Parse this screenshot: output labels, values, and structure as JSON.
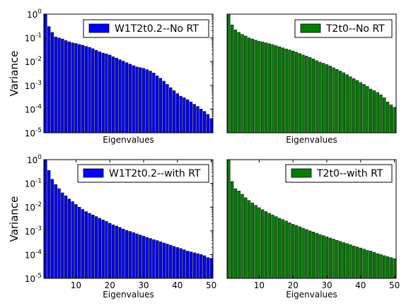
{
  "chart_data": [
    {
      "type": "bar",
      "legend": "W1T2t0.2--No RT",
      "color": "#0000ff",
      "xlabel": "Eigenvalues",
      "ylabel": "Variance",
      "yscale": "log",
      "ylim": [
        1e-05,
        1
      ],
      "xlim": [
        0.5,
        50.5
      ],
      "show_x_ticks": false,
      "show_y_ticks": true,
      "legend_position": "top-right",
      "x": [
        1,
        2,
        3,
        4,
        5,
        6,
        7,
        8,
        9,
        10,
        11,
        12,
        13,
        14,
        15,
        16,
        17,
        18,
        19,
        20,
        21,
        22,
        23,
        24,
        25,
        26,
        27,
        28,
        29,
        30,
        31,
        32,
        33,
        34,
        35,
        36,
        37,
        38,
        39,
        40,
        41,
        42,
        43,
        44,
        45,
        46,
        47,
        48,
        49,
        50
      ],
      "values": [
        1.0,
        0.3,
        0.17,
        0.11,
        0.1,
        0.09,
        0.077,
        0.068,
        0.062,
        0.058,
        0.053,
        0.049,
        0.044,
        0.04,
        0.035,
        0.03,
        0.026,
        0.023,
        0.021,
        0.019,
        0.016,
        0.014,
        0.012,
        0.0105,
        0.009,
        0.0078,
        0.0068,
        0.006,
        0.0056,
        0.0052,
        0.0046,
        0.004,
        0.0033,
        0.0025,
        0.002,
        0.0015,
        0.0011,
        0.0008,
        0.0006,
        0.00045,
        0.00035,
        0.0003,
        0.00025,
        0.0002,
        0.00016,
        0.00013,
        0.0001,
        8e-05,
        6e-05,
        4e-05
      ]
    },
    {
      "type": "bar",
      "legend": "T2t0--No RT",
      "color": "#007f00",
      "xlabel": "Eigenvalues",
      "ylabel": "",
      "yscale": "log",
      "ylim": [
        1e-05,
        1
      ],
      "xlim": [
        0.5,
        50.5
      ],
      "show_x_ticks": false,
      "show_y_ticks": false,
      "legend_position": "top-right",
      "x": [
        1,
        2,
        3,
        4,
        5,
        6,
        7,
        8,
        9,
        10,
        11,
        12,
        13,
        14,
        15,
        16,
        17,
        18,
        19,
        20,
        21,
        22,
        23,
        24,
        25,
        26,
        27,
        28,
        29,
        30,
        31,
        32,
        33,
        34,
        35,
        36,
        37,
        38,
        39,
        40,
        41,
        42,
        43,
        44,
        45,
        46,
        47,
        48,
        49,
        50
      ],
      "values": [
        1.0,
        0.35,
        0.22,
        0.17,
        0.14,
        0.12,
        0.1,
        0.09,
        0.08,
        0.072,
        0.067,
        0.062,
        0.057,
        0.052,
        0.047,
        0.042,
        0.038,
        0.034,
        0.031,
        0.028,
        0.025,
        0.022,
        0.019,
        0.017,
        0.015,
        0.013,
        0.011,
        0.0095,
        0.0085,
        0.0075,
        0.0065,
        0.0055,
        0.0047,
        0.004,
        0.0034,
        0.0028,
        0.0023,
        0.0019,
        0.0016,
        0.0013,
        0.0011,
        0.0009,
        0.0007,
        0.0006,
        0.0005,
        0.0004,
        0.0003,
        0.0002,
        0.00015,
        0.00012
      ]
    },
    {
      "type": "bar",
      "legend": "W1T2t0.2--with RT",
      "color": "#0000ff",
      "xlabel": "Eigenvalues",
      "ylabel": "Variance",
      "yscale": "log",
      "ylim": [
        1e-05,
        1
      ],
      "xlim": [
        0.5,
        50.5
      ],
      "xticks": [
        10,
        20,
        30,
        40,
        50
      ],
      "show_x_ticks": true,
      "show_y_ticks": true,
      "legend_position": "top-right",
      "x": [
        1,
        2,
        3,
        4,
        5,
        6,
        7,
        8,
        9,
        10,
        11,
        12,
        13,
        14,
        15,
        16,
        17,
        18,
        19,
        20,
        21,
        22,
        23,
        24,
        25,
        26,
        27,
        28,
        29,
        30,
        31,
        32,
        33,
        34,
        35,
        36,
        37,
        38,
        39,
        40,
        41,
        42,
        43,
        44,
        45,
        46,
        47,
        48,
        49,
        50
      ],
      "values": [
        1.0,
        0.35,
        0.15,
        0.09,
        0.06,
        0.04,
        0.03,
        0.022,
        0.017,
        0.013,
        0.01,
        0.008,
        0.0065,
        0.0055,
        0.0047,
        0.004,
        0.0034,
        0.0029,
        0.0025,
        0.0021,
        0.0018,
        0.0016,
        0.0014,
        0.0012,
        0.00105,
        0.00095,
        0.00085,
        0.00075,
        0.00067,
        0.0006,
        0.00053,
        0.00048,
        0.00043,
        0.00039,
        0.00035,
        0.00031,
        0.00028,
        0.00025,
        0.00022,
        0.0002,
        0.00018,
        0.00016,
        0.00014,
        0.00013,
        0.00012,
        0.00011,
        0.0001,
        9e-05,
        7.5e-05,
        7e-05
      ]
    },
    {
      "type": "bar",
      "legend": "T2t0--with RT",
      "color": "#007f00",
      "xlabel": "Eigenvalues",
      "ylabel": "",
      "yscale": "log",
      "ylim": [
        1e-05,
        1
      ],
      "xlim": [
        0.5,
        50.5
      ],
      "xticks": [
        10,
        20,
        30,
        40,
        50
      ],
      "show_x_ticks": true,
      "show_y_ticks": false,
      "legend_position": "top-right",
      "x": [
        1,
        2,
        3,
        4,
        5,
        6,
        7,
        8,
        9,
        10,
        11,
        12,
        13,
        14,
        15,
        16,
        17,
        18,
        19,
        20,
        21,
        22,
        23,
        24,
        25,
        26,
        27,
        28,
        29,
        30,
        31,
        32,
        33,
        34,
        35,
        36,
        37,
        38,
        39,
        40,
        41,
        42,
        43,
        44,
        45,
        46,
        47,
        48,
        49,
        50
      ],
      "values": [
        1.0,
        0.12,
        0.06,
        0.048,
        0.035,
        0.025,
        0.019,
        0.015,
        0.012,
        0.0095,
        0.0078,
        0.0065,
        0.0055,
        0.0047,
        0.004,
        0.0034,
        0.003,
        0.0026,
        0.0022,
        0.0019,
        0.0017,
        0.0015,
        0.0013,
        0.00115,
        0.001,
        0.0009,
        0.0008,
        0.0007,
        0.00063,
        0.00056,
        0.0005,
        0.00045,
        0.0004,
        0.00036,
        0.00032,
        0.00029,
        0.00026,
        0.00023,
        0.00021,
        0.00019,
        0.00017,
        0.00015,
        0.00014,
        0.000125,
        0.00011,
        0.0001,
        9e-05,
        8.2e-05,
        7.5e-05,
        6.8e-05
      ]
    }
  ]
}
